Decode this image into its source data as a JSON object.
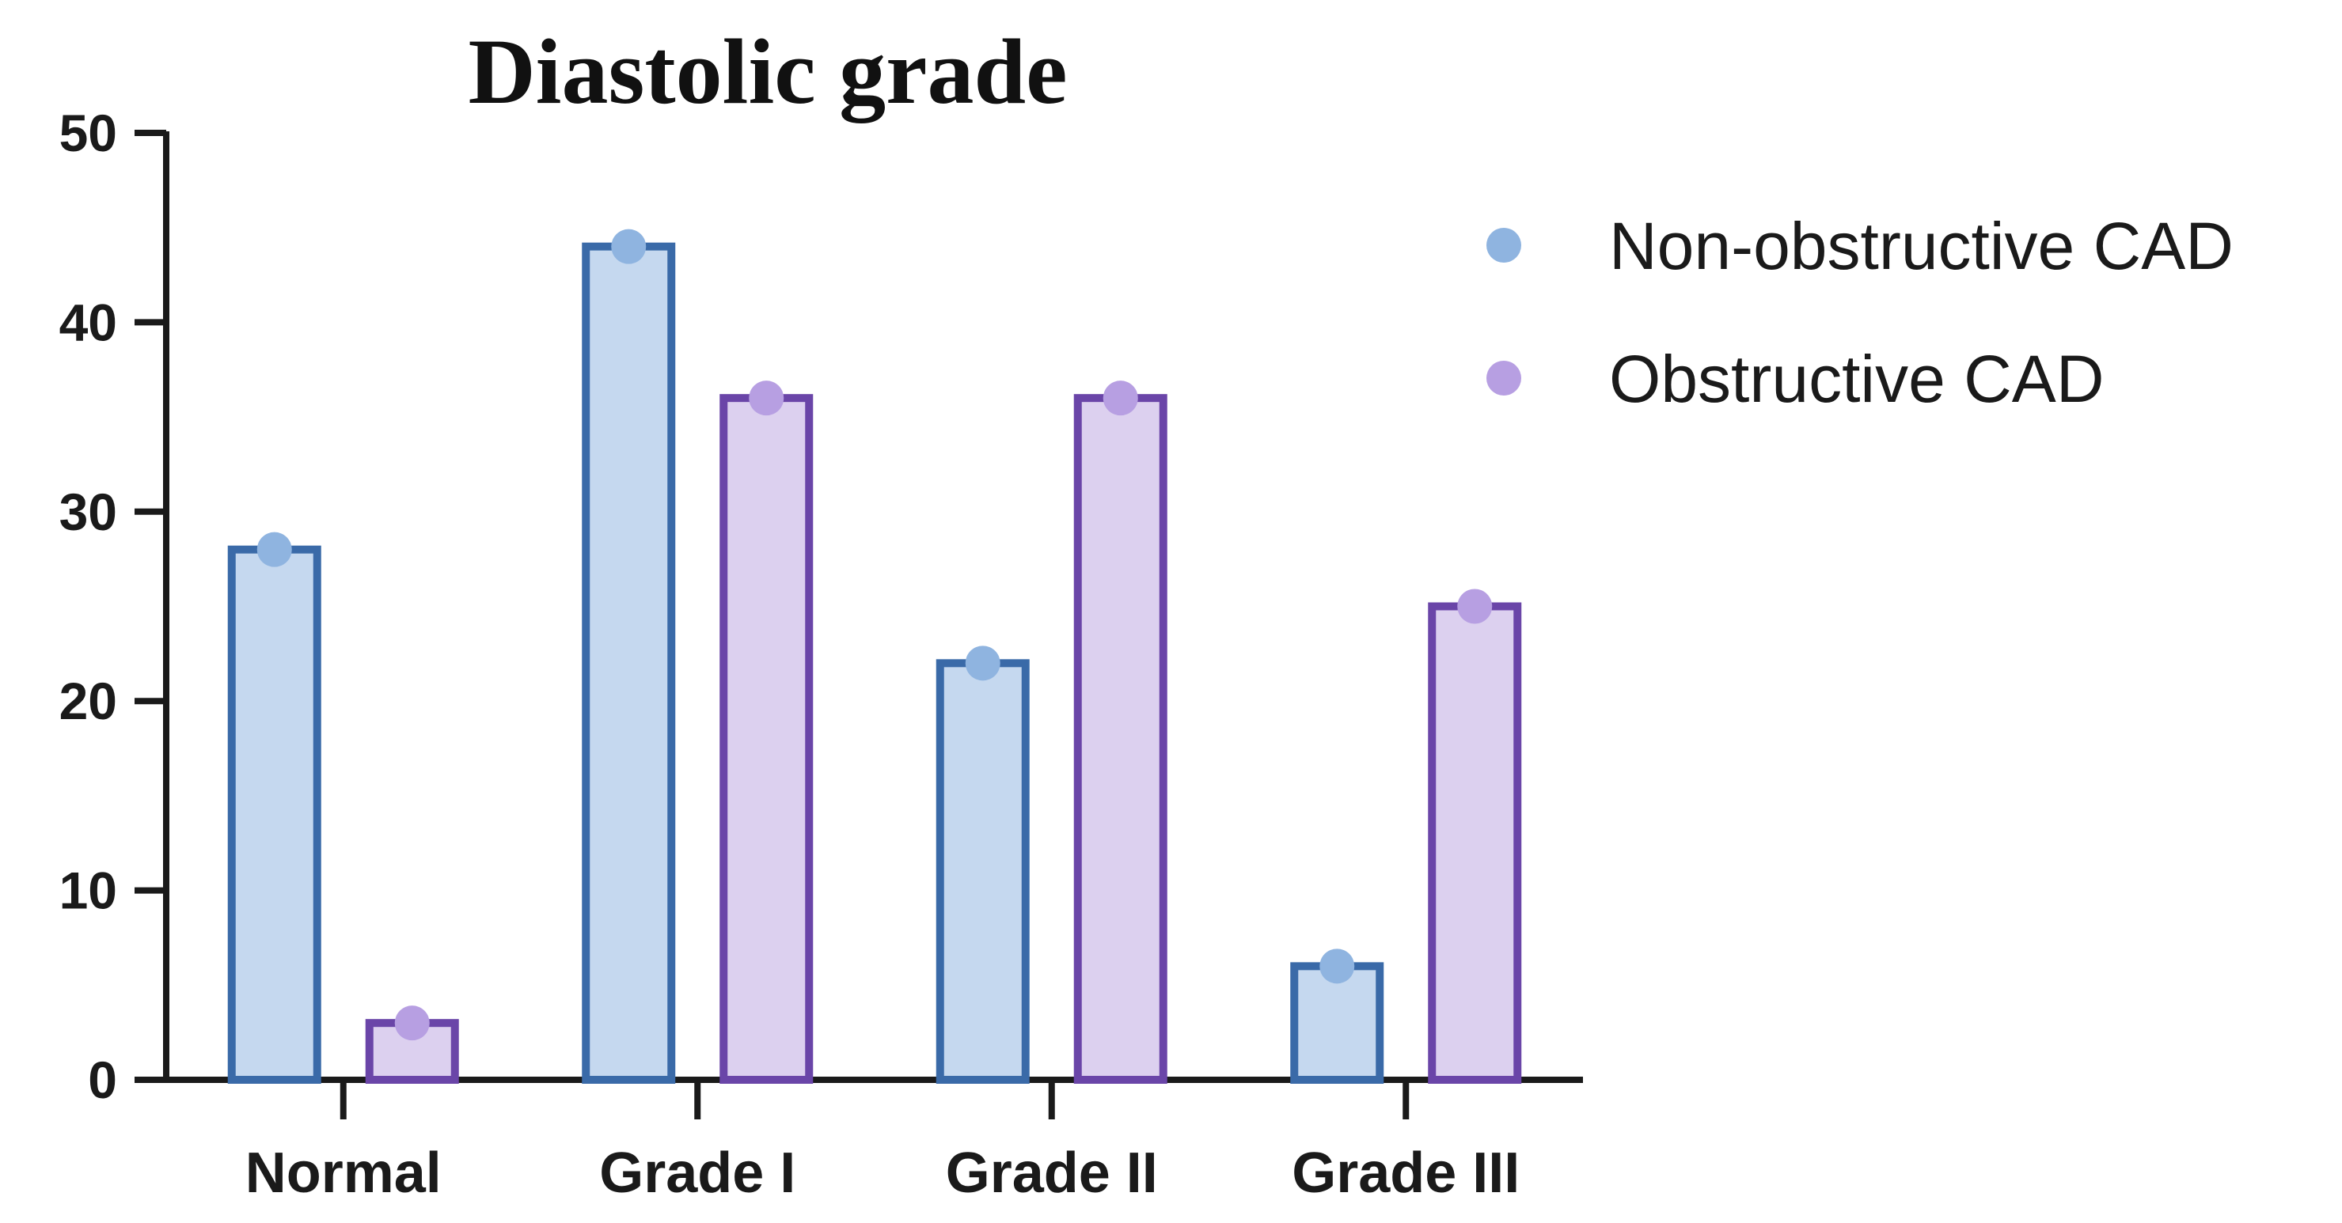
{
  "chart_data": {
    "type": "bar",
    "title": "Diastolic grade",
    "xlabel": "",
    "ylabel": "",
    "categories": [
      "Normal",
      "Grade I",
      "Grade II",
      "Grade III"
    ],
    "series": [
      {
        "name": "Non-obstructive CAD",
        "values": [
          28,
          44,
          22,
          6
        ],
        "fill": "#c5d8ef",
        "stroke": "#3a6aa8",
        "marker": "#8fb4e0"
      },
      {
        "name": "Obstructive CAD",
        "values": [
          3,
          36,
          36,
          25
        ],
        "fill": "#dcd0ef",
        "stroke": "#6a45a8",
        "marker": "#b79fe2"
      }
    ],
    "ylim": [
      0,
      50
    ],
    "yticks": [
      "0",
      "10",
      "20",
      "30",
      "40",
      "50"
    ],
    "grid": false,
    "legend_position": "right"
  }
}
